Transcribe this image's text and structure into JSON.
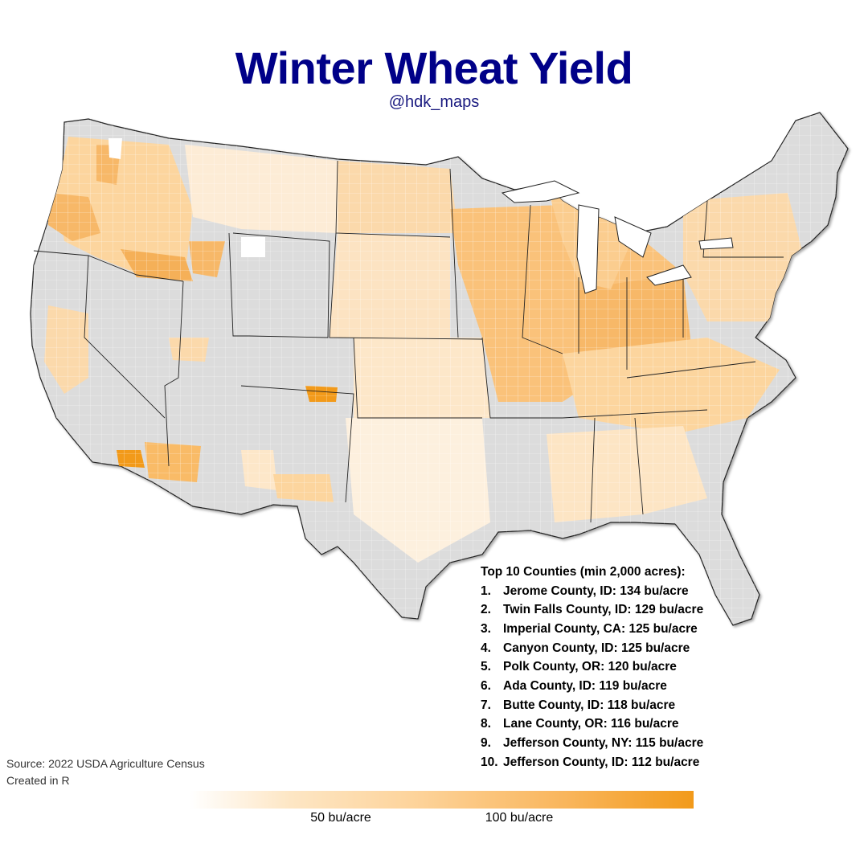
{
  "header": {
    "title": "Winter Wheat Yield",
    "subtitle": "@hdk_maps"
  },
  "top10": {
    "heading": "Top 10 Counties (min 2,000 acres):",
    "items": [
      {
        "rank": "1.",
        "text": "Jerome County, ID: 134 bu/acre"
      },
      {
        "rank": "2.",
        "text": "Twin Falls County, ID: 129 bu/acre"
      },
      {
        "rank": "3.",
        "text": "Imperial County, CA: 125 bu/acre"
      },
      {
        "rank": "4.",
        "text": "Canyon County, ID: 125 bu/acre"
      },
      {
        "rank": "5.",
        "text": "Polk County, OR: 120 bu/acre"
      },
      {
        "rank": "6.",
        "text": "Ada County, ID: 119 bu/acre"
      },
      {
        "rank": "7.",
        "text": "Butte County, ID: 118 bu/acre"
      },
      {
        "rank": "8.",
        "text": "Lane County, OR: 116 bu/acre"
      },
      {
        "rank": "9.",
        "text": "Jefferson County, NY: 115 bu/acre"
      },
      {
        "rank": "10.",
        "text": "Jefferson County, ID: 112 bu/acre"
      }
    ]
  },
  "source": {
    "line1": "Source: 2022 USDA Agriculture Census",
    "line2": "Created in R"
  },
  "legend": {
    "ticks": [
      "50 bu/acre",
      "100 bu/acre"
    ],
    "color_low": "#ffffff",
    "color_high": "#f29a1a"
  },
  "colors": {
    "title": "#000088",
    "no_data": "#dcdcdc",
    "high_yield": "#f29a1a"
  }
}
